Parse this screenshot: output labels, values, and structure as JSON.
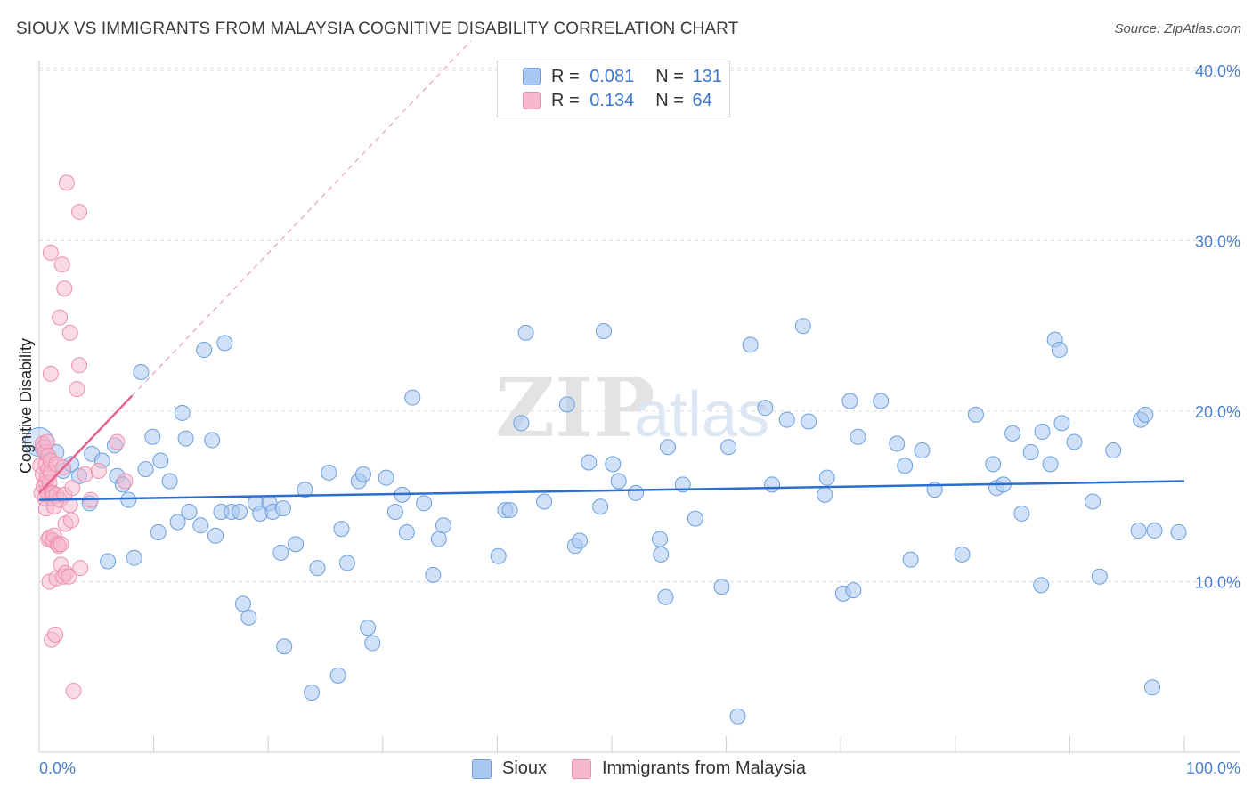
{
  "title": "SIOUX VS IMMIGRANTS FROM MALAYSIA COGNITIVE DISABILITY CORRELATION CHART",
  "source": "Source: ZipAtlas.com",
  "watermark": {
    "zip": "ZIP",
    "atlas": "atlas"
  },
  "legend": {
    "rows": [
      {
        "r_label": "R = ",
        "r_value": "0.081",
        "n_label": "N = ",
        "n_value": "131"
      },
      {
        "r_label": "R = ",
        "r_value": "0.134",
        "n_label": "N = ",
        "n_value": "64"
      }
    ]
  },
  "bottom_legend": {
    "series1": "Sioux",
    "series2": "Immigrants from Malaysia"
  },
  "colors": {
    "sioux_fill": "#a9c8f0",
    "sioux_stroke": "#6a9fe0",
    "sioux_line": "#2a6fcf",
    "malaysia_fill": "#f6b8cb",
    "malaysia_stroke": "#ee8fae",
    "malaysia_line": "#e8628d",
    "axis_text": "#4a7fcf",
    "grid": "#dcdcdc"
  },
  "chart_data": {
    "type": "scatter",
    "title": "SIOUX VS IMMIGRANTS FROM MALAYSIA COGNITIVE DISABILITY CORRELATION CHART",
    "xlabel": "",
    "ylabel": "Cognitive Disability",
    "xlim": [
      0,
      100
    ],
    "ylim": [
      0,
      42
    ],
    "x_tick_labels": [
      "0.0%",
      "100.0%"
    ],
    "y_ticks": [
      10,
      20,
      30,
      40
    ],
    "y_tick_labels": [
      "10.0%",
      "20.0%",
      "30.0%",
      "40.0%"
    ],
    "series": [
      {
        "name": "Sioux",
        "trend": {
          "x": [
            0,
            100
          ],
          "y": [
            14.8,
            15.9
          ]
        },
        "points": [
          [
            0.3,
            17.8
          ],
          [
            0.6,
            17.5
          ],
          [
            1.5,
            17.6
          ],
          [
            2.1,
            16.5
          ],
          [
            2.8,
            16.9
          ],
          [
            3.5,
            16.2
          ],
          [
            4.4,
            14.6
          ],
          [
            4.6,
            17.5
          ],
          [
            5.5,
            17.1
          ],
          [
            6.0,
            11.2
          ],
          [
            6.6,
            18.0
          ],
          [
            6.8,
            16.2
          ],
          [
            7.3,
            15.7
          ],
          [
            7.8,
            14.8
          ],
          [
            8.3,
            11.4
          ],
          [
            8.9,
            22.3
          ],
          [
            9.3,
            16.6
          ],
          [
            9.9,
            18.5
          ],
          [
            10.4,
            12.9
          ],
          [
            10.6,
            17.1
          ],
          [
            11.4,
            15.9
          ],
          [
            12.1,
            13.5
          ],
          [
            12.5,
            19.9
          ],
          [
            12.8,
            18.4
          ],
          [
            13.1,
            14.1
          ],
          [
            14.1,
            13.3
          ],
          [
            14.4,
            23.6
          ],
          [
            15.1,
            18.3
          ],
          [
            15.4,
            12.7
          ],
          [
            15.9,
            14.1
          ],
          [
            16.2,
            24.0
          ],
          [
            16.8,
            14.1
          ],
          [
            17.5,
            14.1
          ],
          [
            17.8,
            8.7
          ],
          [
            18.3,
            7.9
          ],
          [
            18.9,
            14.6
          ],
          [
            19.3,
            14.0
          ],
          [
            20.1,
            14.6
          ],
          [
            20.4,
            14.1
          ],
          [
            21.3,
            14.3
          ],
          [
            21.1,
            11.7
          ],
          [
            21.4,
            6.2
          ],
          [
            22.4,
            12.2
          ],
          [
            23.2,
            15.4
          ],
          [
            23.8,
            3.5
          ],
          [
            24.3,
            10.8
          ],
          [
            25.3,
            16.4
          ],
          [
            26.1,
            4.5
          ],
          [
            26.4,
            13.1
          ],
          [
            26.9,
            11.1
          ],
          [
            27.9,
            15.9
          ],
          [
            28.3,
            16.3
          ],
          [
            28.7,
            7.3
          ],
          [
            29.1,
            6.4
          ],
          [
            30.3,
            16.1
          ],
          [
            31.1,
            14.1
          ],
          [
            31.7,
            15.1
          ],
          [
            32.1,
            12.9
          ],
          [
            32.6,
            20.8
          ],
          [
            33.6,
            14.6
          ],
          [
            34.4,
            10.4
          ],
          [
            34.9,
            12.5
          ],
          [
            35.3,
            13.3
          ],
          [
            40.1,
            11.5
          ],
          [
            40.7,
            14.2
          ],
          [
            41.1,
            14.2
          ],
          [
            42.1,
            19.3
          ],
          [
            42.5,
            24.6
          ],
          [
            44.1,
            14.7
          ],
          [
            46.1,
            20.4
          ],
          [
            46.8,
            12.1
          ],
          [
            47.2,
            12.4
          ],
          [
            48.0,
            17.0
          ],
          [
            49.0,
            14.4
          ],
          [
            49.3,
            24.7
          ],
          [
            50.1,
            16.9
          ],
          [
            50.6,
            15.9
          ],
          [
            52.1,
            15.2
          ],
          [
            54.2,
            12.5
          ],
          [
            54.3,
            11.6
          ],
          [
            54.7,
            9.1
          ],
          [
            54.9,
            17.9
          ],
          [
            56.2,
            15.7
          ],
          [
            57.3,
            13.7
          ],
          [
            59.6,
            9.7
          ],
          [
            60.2,
            17.9
          ],
          [
            61.0,
            2.1
          ],
          [
            62.1,
            23.9
          ],
          [
            63.4,
            20.2
          ],
          [
            64.0,
            15.7
          ],
          [
            65.3,
            19.5
          ],
          [
            66.7,
            25.0
          ],
          [
            67.2,
            19.4
          ],
          [
            68.6,
            15.1
          ],
          [
            68.8,
            16.1
          ],
          [
            70.2,
            9.3
          ],
          [
            70.8,
            20.6
          ],
          [
            71.1,
            9.5
          ],
          [
            71.5,
            18.5
          ],
          [
            73.5,
            20.6
          ],
          [
            74.9,
            18.1
          ],
          [
            75.6,
            16.8
          ],
          [
            76.1,
            11.3
          ],
          [
            77.1,
            17.7
          ],
          [
            78.2,
            15.4
          ],
          [
            80.6,
            11.6
          ],
          [
            81.8,
            19.8
          ],
          [
            83.3,
            16.9
          ],
          [
            83.6,
            15.5
          ],
          [
            84.2,
            15.7
          ],
          [
            85.0,
            18.7
          ],
          [
            85.8,
            14.0
          ],
          [
            86.6,
            17.6
          ],
          [
            87.5,
            9.8
          ],
          [
            87.6,
            18.8
          ],
          [
            88.3,
            16.9
          ],
          [
            88.7,
            24.2
          ],
          [
            89.1,
            23.6
          ],
          [
            89.3,
            19.3
          ],
          [
            90.4,
            18.2
          ],
          [
            92.0,
            14.7
          ],
          [
            92.6,
            10.3
          ],
          [
            93.8,
            17.7
          ],
          [
            96.0,
            13.0
          ],
          [
            96.2,
            19.5
          ],
          [
            96.6,
            19.8
          ],
          [
            97.2,
            3.8
          ],
          [
            97.4,
            13.0
          ],
          [
            99.5,
            12.9
          ]
        ]
      },
      {
        "name": "Immigrants from Malaysia",
        "trend": {
          "x": [
            0,
            8.1
          ],
          "y": [
            15.2,
            20.9
          ]
        },
        "points": [
          [
            0.1,
            16.8
          ],
          [
            0.2,
            15.2
          ],
          [
            0.3,
            18.1
          ],
          [
            0.3,
            16.3
          ],
          [
            0.4,
            17.9
          ],
          [
            0.4,
            15.6
          ],
          [
            0.5,
            17.6
          ],
          [
            0.5,
            14.9
          ],
          [
            0.6,
            16.9
          ],
          [
            0.6,
            15.8
          ],
          [
            0.6,
            14.3
          ],
          [
            0.7,
            18.2
          ],
          [
            0.7,
            16.1
          ],
          [
            0.7,
            15.3
          ],
          [
            0.8,
            17.4
          ],
          [
            0.8,
            16.6
          ],
          [
            0.8,
            12.5
          ],
          [
            0.9,
            15.8
          ],
          [
            0.9,
            12.6
          ],
          [
            0.9,
            10.0
          ],
          [
            1.0,
            22.2
          ],
          [
            1.0,
            29.3
          ],
          [
            1.0,
            17.1
          ],
          [
            1.0,
            16.4
          ],
          [
            1.1,
            15.2
          ],
          [
            1.1,
            14.9
          ],
          [
            1.1,
            6.6
          ],
          [
            1.2,
            15.2
          ],
          [
            1.2,
            12.4
          ],
          [
            1.3,
            14.4
          ],
          [
            1.3,
            12.7
          ],
          [
            1.4,
            6.9
          ],
          [
            1.5,
            16.9
          ],
          [
            1.5,
            15.1
          ],
          [
            1.5,
            10.2
          ],
          [
            1.6,
            12.2
          ],
          [
            1.7,
            12.1
          ],
          [
            1.8,
            25.5
          ],
          [
            1.8,
            14.8
          ],
          [
            1.9,
            11.0
          ],
          [
            1.9,
            12.2
          ],
          [
            2.0,
            28.6
          ],
          [
            2.1,
            16.7
          ],
          [
            2.1,
            10.3
          ],
          [
            2.2,
            27.2
          ],
          [
            2.2,
            15.1
          ],
          [
            2.3,
            13.4
          ],
          [
            2.3,
            10.5
          ],
          [
            2.4,
            33.4
          ],
          [
            2.6,
            10.3
          ],
          [
            2.7,
            24.6
          ],
          [
            2.7,
            14.5
          ],
          [
            2.8,
            13.6
          ],
          [
            2.9,
            15.5
          ],
          [
            3.0,
            3.6
          ],
          [
            3.3,
            21.3
          ],
          [
            3.5,
            31.7
          ],
          [
            3.5,
            22.7
          ],
          [
            3.6,
            10.8
          ],
          [
            4.0,
            16.3
          ],
          [
            4.5,
            14.8
          ],
          [
            5.2,
            16.5
          ],
          [
            6.8,
            18.2
          ],
          [
            7.5,
            15.9
          ]
        ]
      }
    ]
  }
}
